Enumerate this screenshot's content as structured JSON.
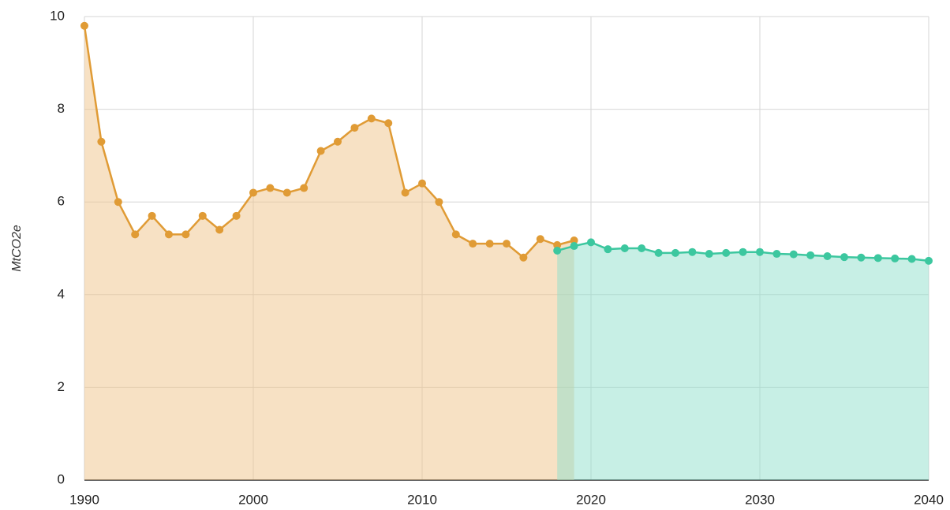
{
  "chart_data": {
    "type": "area",
    "y_label": "MtCO2e",
    "xlim": [
      1990,
      2040
    ],
    "xticks": [
      1990,
      2000,
      2010,
      2020,
      2030,
      2040
    ],
    "ylim": [
      0,
      10
    ],
    "yticks": [
      0,
      2,
      4,
      6,
      8,
      10
    ],
    "grid": true,
    "series": [
      {
        "color": "#e09b35",
        "fill": "#f0c48a",
        "x": [
          1990,
          1991,
          1992,
          1993,
          1994,
          1995,
          1996,
          1997,
          1998,
          1999,
          2000,
          2001,
          2002,
          2003,
          2004,
          2005,
          2006,
          2007,
          2008,
          2009,
          2010,
          2011,
          2012,
          2013,
          2014,
          2015,
          2016,
          2017,
          2018,
          2019
        ],
        "values": [
          9.8,
          7.3,
          6.0,
          5.3,
          5.7,
          5.3,
          5.3,
          5.7,
          5.4,
          5.7,
          6.2,
          6.3,
          6.2,
          6.3,
          7.1,
          7.3,
          7.6,
          7.8,
          7.7,
          6.2,
          6.4,
          6.0,
          5.3,
          5.1,
          5.1,
          5.1,
          4.8,
          5.2,
          5.07,
          5.17
        ]
      },
      {
        "color": "#3cc79f",
        "fill": "#8fdfcb",
        "x": [
          2018,
          2019,
          2020,
          2021,
          2022,
          2023,
          2024,
          2025,
          2026,
          2027,
          2028,
          2029,
          2030,
          2031,
          2032,
          2033,
          2034,
          2035,
          2036,
          2037,
          2038,
          2039,
          2040
        ],
        "values": [
          4.95,
          5.05,
          5.13,
          4.98,
          5.0,
          5.0,
          4.9,
          4.9,
          4.92,
          4.88,
          4.9,
          4.92,
          4.92,
          4.88,
          4.87,
          4.85,
          4.83,
          4.81,
          4.8,
          4.79,
          4.78,
          4.77,
          4.73
        ]
      }
    ]
  }
}
